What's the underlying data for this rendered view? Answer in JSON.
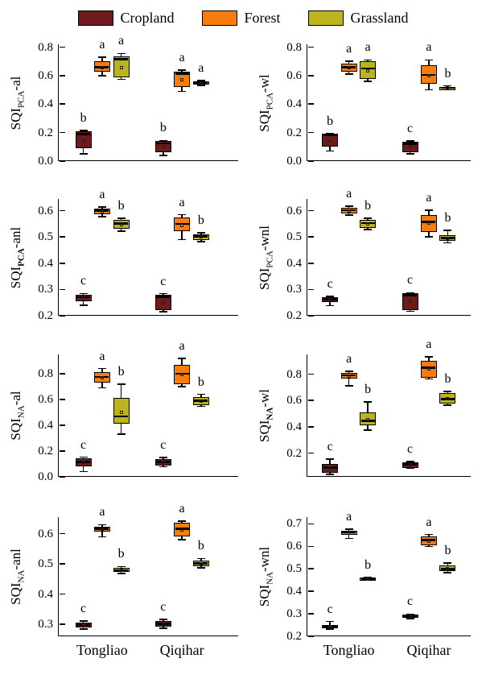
{
  "legend": {
    "items": [
      {
        "label": "Cropland",
        "color": "#6E1A1A"
      },
      {
        "label": "Forest",
        "color": "#F97D0E"
      },
      {
        "label": "Grassland",
        "color": "#BCB41E"
      }
    ]
  },
  "locations": [
    "Tongliao",
    "Qiqihar"
  ],
  "colors": {
    "box_border": "#000000",
    "axis": "#000000",
    "background": "#ffffff"
  },
  "chart_data": [
    {
      "type": "box",
      "ylabel": {
        "base": "SQI",
        "sub": "PCA",
        "suffix": "-al",
        "sub_bold": false
      },
      "ylim": [
        0.0,
        0.82
      ],
      "yticks": [
        0.0,
        0.2,
        0.4,
        0.6,
        0.8
      ],
      "ytick_labels": [
        "0.0",
        "0.2",
        "0.4",
        "0.6",
        "0.8"
      ],
      "boxes": [
        {
          "loc": "Tongliao",
          "cat": "Cropland",
          "letter": "b",
          "low": 0.05,
          "q1": 0.09,
          "median": 0.19,
          "mean": 0.14,
          "q3": 0.21,
          "high": 0.215
        },
        {
          "loc": "Tongliao",
          "cat": "Forest",
          "letter": "a",
          "low": 0.6,
          "q1": 0.625,
          "median": 0.66,
          "mean": 0.655,
          "q3": 0.7,
          "high": 0.73
        },
        {
          "loc": "Tongliao",
          "cat": "Grassland",
          "letter": "a",
          "low": 0.575,
          "q1": 0.59,
          "median": 0.715,
          "mean": 0.655,
          "q3": 0.735,
          "high": 0.755
        },
        {
          "loc": "Qiqihar",
          "cat": "Cropland",
          "letter": "b",
          "low": 0.04,
          "q1": 0.06,
          "median": 0.125,
          "mean": 0.1,
          "q3": 0.14,
          "high": 0.145
        },
        {
          "loc": "Qiqihar",
          "cat": "Forest",
          "letter": "a",
          "low": 0.49,
          "q1": 0.52,
          "median": 0.615,
          "mean": 0.57,
          "q3": 0.625,
          "high": 0.64
        },
        {
          "loc": "Qiqihar",
          "cat": "Grassland",
          "letter": "a",
          "low": 0.53,
          "q1": 0.535,
          "median": 0.55,
          "mean": 0.545,
          "q3": 0.558,
          "high": 0.565
        }
      ]
    },
    {
      "type": "box",
      "ylabel": {
        "base": "SQI",
        "sub": "PCA",
        "suffix": "-wl",
        "sub_bold": false
      },
      "ylim": [
        0.0,
        0.82
      ],
      "yticks": [
        0.0,
        0.2,
        0.4,
        0.6,
        0.8
      ],
      "ytick_labels": [
        "0.0",
        "0.2",
        "0.4",
        "0.6",
        "0.8"
      ],
      "boxes": [
        {
          "loc": "Tongliao",
          "cat": "Cropland",
          "letter": "b",
          "low": 0.07,
          "q1": 0.1,
          "median": 0.18,
          "mean": 0.14,
          "q3": 0.19,
          "high": 0.195
        },
        {
          "loc": "Tongliao",
          "cat": "Forest",
          "letter": "a",
          "low": 0.61,
          "q1": 0.63,
          "median": 0.66,
          "mean": 0.655,
          "q3": 0.685,
          "high": 0.7
        },
        {
          "loc": "Tongliao",
          "cat": "Grassland",
          "letter": "a",
          "low": 0.56,
          "q1": 0.575,
          "median": 0.65,
          "mean": 0.635,
          "q3": 0.7,
          "high": 0.71
        },
        {
          "loc": "Qiqihar",
          "cat": "Cropland",
          "letter": "c",
          "low": 0.05,
          "q1": 0.06,
          "median": 0.12,
          "mean": 0.1,
          "q3": 0.135,
          "high": 0.14
        },
        {
          "loc": "Qiqihar",
          "cat": "Forest",
          "letter": "a",
          "low": 0.5,
          "q1": 0.54,
          "median": 0.605,
          "mean": 0.6,
          "q3": 0.675,
          "high": 0.71
        },
        {
          "loc": "Qiqihar",
          "cat": "Grassland",
          "letter": "b",
          "low": 0.503,
          "q1": 0.507,
          "median": 0.515,
          "mean": 0.513,
          "q3": 0.52,
          "high": 0.528
        }
      ]
    },
    {
      "type": "box",
      "ylabel": {
        "base": "SQI",
        "sub": "PCA",
        "suffix": "-anl",
        "sub_bold": true
      },
      "ylim": [
        0.2,
        0.645
      ],
      "yticks": [
        0.2,
        0.3,
        0.4,
        0.5,
        0.6
      ],
      "ytick_labels": [
        "0.2",
        "0.3",
        "0.4",
        "0.5",
        "0.6"
      ],
      "boxes": [
        {
          "loc": "Tongliao",
          "cat": "Cropland",
          "letter": "c",
          "low": 0.24,
          "q1": 0.255,
          "median": 0.27,
          "mean": 0.265,
          "q3": 0.28,
          "high": 0.285
        },
        {
          "loc": "Tongliao",
          "cat": "Forest",
          "letter": "a",
          "low": 0.578,
          "q1": 0.588,
          "median": 0.6,
          "mean": 0.597,
          "q3": 0.607,
          "high": 0.615
        },
        {
          "loc": "Tongliao",
          "cat": "Grassland",
          "letter": "b",
          "low": 0.523,
          "q1": 0.53,
          "median": 0.552,
          "mean": 0.548,
          "q3": 0.565,
          "high": 0.572
        },
        {
          "loc": "Qiqihar",
          "cat": "Cropland",
          "letter": "c",
          "low": 0.215,
          "q1": 0.222,
          "median": 0.272,
          "mean": 0.25,
          "q3": 0.28,
          "high": 0.284
        },
        {
          "loc": "Qiqihar",
          "cat": "Forest",
          "letter": "a",
          "low": 0.49,
          "q1": 0.523,
          "median": 0.55,
          "mean": 0.545,
          "q3": 0.575,
          "high": 0.585
        },
        {
          "loc": "Qiqihar",
          "cat": "Grassland",
          "letter": "b",
          "low": 0.483,
          "q1": 0.49,
          "median": 0.502,
          "mean": 0.5,
          "q3": 0.51,
          "high": 0.517
        }
      ]
    },
    {
      "type": "box",
      "ylabel": {
        "base": "SQI",
        "sub": "PCA",
        "suffix": "-wnl",
        "sub_bold": false
      },
      "ylim": [
        0.2,
        0.645
      ],
      "yticks": [
        0.2,
        0.3,
        0.4,
        0.5,
        0.6
      ],
      "ytick_labels": [
        "0.2",
        "0.3",
        "0.4",
        "0.5",
        "0.6"
      ],
      "boxes": [
        {
          "loc": "Tongliao",
          "cat": "Cropland",
          "letter": "c",
          "low": 0.238,
          "q1": 0.252,
          "median": 0.263,
          "mean": 0.26,
          "q3": 0.27,
          "high": 0.273
        },
        {
          "loc": "Tongliao",
          "cat": "Forest",
          "letter": "a",
          "low": 0.583,
          "q1": 0.59,
          "median": 0.602,
          "mean": 0.6,
          "q3": 0.61,
          "high": 0.617
        },
        {
          "loc": "Tongliao",
          "cat": "Grassland",
          "letter": "b",
          "low": 0.528,
          "q1": 0.535,
          "median": 0.553,
          "mean": 0.55,
          "q3": 0.565,
          "high": 0.572
        },
        {
          "loc": "Qiqihar",
          "cat": "Cropland",
          "letter": "c",
          "low": 0.217,
          "q1": 0.221,
          "median": 0.278,
          "mean": 0.255,
          "q3": 0.286,
          "high": 0.288
        },
        {
          "loc": "Qiqihar",
          "cat": "Forest",
          "letter": "a",
          "low": 0.5,
          "q1": 0.52,
          "median": 0.557,
          "mean": 0.553,
          "q3": 0.585,
          "high": 0.602
        },
        {
          "loc": "Qiqihar",
          "cat": "Grassland",
          "letter": "b",
          "low": 0.478,
          "q1": 0.485,
          "median": 0.497,
          "mean": 0.496,
          "q3": 0.506,
          "high": 0.525
        }
      ]
    },
    {
      "type": "box",
      "ylabel": {
        "base": "SQI",
        "sub": "NA",
        "suffix": "-al",
        "sub_bold": false
      },
      "ylim": [
        0.0,
        0.95
      ],
      "yticks": [
        0.0,
        0.2,
        0.4,
        0.6,
        0.8
      ],
      "ytick_labels": [
        "0.0",
        "0.2",
        "0.4",
        "0.6",
        "0.8"
      ],
      "boxes": [
        {
          "loc": "Tongliao",
          "cat": "Cropland",
          "letter": "c",
          "low": 0.04,
          "q1": 0.08,
          "median": 0.115,
          "mean": 0.11,
          "q3": 0.145,
          "high": 0.152
        },
        {
          "loc": "Tongliao",
          "cat": "Forest",
          "letter": "a",
          "low": 0.69,
          "q1": 0.73,
          "median": 0.775,
          "mean": 0.77,
          "q3": 0.81,
          "high": 0.84
        },
        {
          "loc": "Tongliao",
          "cat": "Grassland",
          "letter": "b",
          "low": 0.33,
          "q1": 0.41,
          "median": 0.47,
          "mean": 0.5,
          "q3": 0.61,
          "high": 0.72
        },
        {
          "loc": "Qiqihar",
          "cat": "Cropland",
          "letter": "c",
          "low": 0.078,
          "q1": 0.09,
          "median": 0.115,
          "mean": 0.112,
          "q3": 0.14,
          "high": 0.15
        },
        {
          "loc": "Qiqihar",
          "cat": "Forest",
          "letter": "a",
          "low": 0.7,
          "q1": 0.72,
          "median": 0.8,
          "mean": 0.795,
          "q3": 0.87,
          "high": 0.92
        },
        {
          "loc": "Qiqihar",
          "cat": "Grassland",
          "letter": "b",
          "low": 0.548,
          "q1": 0.556,
          "median": 0.592,
          "mean": 0.59,
          "q3": 0.62,
          "high": 0.64
        }
      ]
    },
    {
      "type": "box",
      "ylabel": {
        "base": "SQI",
        "sub": "NA",
        "suffix": "-wl",
        "sub_bold": true
      },
      "ylim": [
        0.02,
        0.95
      ],
      "yticks": [
        0.2,
        0.4,
        0.6,
        0.8
      ],
      "ytick_labels": [
        "0.2",
        "0.4",
        "0.6",
        "0.8"
      ],
      "boxes": [
        {
          "loc": "Tongliao",
          "cat": "Cropland",
          "letter": "c",
          "low": 0.04,
          "q1": 0.05,
          "median": 0.09,
          "mean": 0.085,
          "q3": 0.115,
          "high": 0.155
        },
        {
          "loc": "Tongliao",
          "cat": "Forest",
          "letter": "a",
          "low": 0.71,
          "q1": 0.765,
          "median": 0.79,
          "mean": 0.785,
          "q3": 0.81,
          "high": 0.82
        },
        {
          "loc": "Tongliao",
          "cat": "Grassland",
          "letter": "b",
          "low": 0.375,
          "q1": 0.41,
          "median": 0.445,
          "mean": 0.455,
          "q3": 0.51,
          "high": 0.59
        },
        {
          "loc": "Qiqihar",
          "cat": "Cropland",
          "letter": "c",
          "low": 0.083,
          "q1": 0.09,
          "median": 0.115,
          "mean": 0.112,
          "q3": 0.13,
          "high": 0.137
        },
        {
          "loc": "Qiqihar",
          "cat": "Forest",
          "letter": "a",
          "low": 0.763,
          "q1": 0.77,
          "median": 0.85,
          "mean": 0.84,
          "q3": 0.9,
          "high": 0.93
        },
        {
          "loc": "Qiqihar",
          "cat": "Grassland",
          "letter": "b",
          "low": 0.563,
          "q1": 0.575,
          "median": 0.61,
          "mean": 0.615,
          "q3": 0.655,
          "high": 0.67
        }
      ]
    },
    {
      "type": "box",
      "ylabel": {
        "base": "SQI",
        "sub": "NA",
        "suffix": "-anl",
        "sub_bold": false
      },
      "ylim": [
        0.26,
        0.655
      ],
      "yticks": [
        0.3,
        0.4,
        0.5,
        0.6
      ],
      "ytick_labels": [
        "0.3",
        "0.4",
        "0.5",
        "0.6"
      ],
      "boxes": [
        {
          "loc": "Tongliao",
          "cat": "Cropland",
          "letter": "c",
          "low": 0.284,
          "q1": 0.29,
          "median": 0.297,
          "mean": 0.296,
          "q3": 0.305,
          "high": 0.31
        },
        {
          "loc": "Tongliao",
          "cat": "Forest",
          "letter": "a",
          "low": 0.59,
          "q1": 0.607,
          "median": 0.616,
          "mean": 0.614,
          "q3": 0.622,
          "high": 0.63
        },
        {
          "loc": "Tongliao",
          "cat": "Grassland",
          "letter": "b",
          "low": 0.468,
          "q1": 0.473,
          "median": 0.479,
          "mean": 0.478,
          "q3": 0.486,
          "high": 0.491
        },
        {
          "loc": "Qiqihar",
          "cat": "Cropland",
          "letter": "c",
          "low": 0.287,
          "q1": 0.293,
          "median": 0.302,
          "mean": 0.3,
          "q3": 0.31,
          "high": 0.316
        },
        {
          "loc": "Qiqihar",
          "cat": "Forest",
          "letter": "a",
          "low": 0.58,
          "q1": 0.59,
          "median": 0.617,
          "mean": 0.612,
          "q3": 0.635,
          "high": 0.641
        },
        {
          "loc": "Qiqihar",
          "cat": "Grassland",
          "letter": "b",
          "low": 0.487,
          "q1": 0.491,
          "median": 0.501,
          "mean": 0.5,
          "q3": 0.51,
          "high": 0.518
        }
      ]
    },
    {
      "type": "box",
      "ylabel": {
        "base": "SQI",
        "sub": "NA",
        "suffix": "-wnl",
        "sub_bold": false
      },
      "ylim": [
        0.2,
        0.73
      ],
      "yticks": [
        0.2,
        0.3,
        0.4,
        0.5,
        0.6,
        0.7
      ],
      "ytick_labels": [
        "0.2",
        "0.3",
        "0.4",
        "0.5",
        "0.6",
        "0.7"
      ],
      "boxes": [
        {
          "loc": "Tongliao",
          "cat": "Cropland",
          "letter": "c",
          "low": 0.233,
          "q1": 0.236,
          "median": 0.242,
          "mean": 0.244,
          "q3": 0.25,
          "high": 0.266
        },
        {
          "loc": "Tongliao",
          "cat": "Forest",
          "letter": "a",
          "low": 0.635,
          "q1": 0.65,
          "median": 0.662,
          "mean": 0.66,
          "q3": 0.67,
          "high": 0.676
        },
        {
          "loc": "Tongliao",
          "cat": "Grassland",
          "letter": "b",
          "low": 0.449,
          "q1": 0.451,
          "median": 0.455,
          "mean": 0.456,
          "q3": 0.461,
          "high": 0.463
        },
        {
          "loc": "Qiqihar",
          "cat": "Cropland",
          "letter": "c",
          "low": 0.278,
          "q1": 0.281,
          "median": 0.29,
          "mean": 0.288,
          "q3": 0.297,
          "high": 0.299
        },
        {
          "loc": "Qiqihar",
          "cat": "Forest",
          "letter": "a",
          "low": 0.6,
          "q1": 0.606,
          "median": 0.628,
          "mean": 0.624,
          "q3": 0.645,
          "high": 0.653
        },
        {
          "loc": "Qiqihar",
          "cat": "Grassland",
          "letter": "b",
          "low": 0.483,
          "q1": 0.49,
          "median": 0.5,
          "mean": 0.502,
          "q3": 0.515,
          "high": 0.526
        }
      ]
    }
  ]
}
